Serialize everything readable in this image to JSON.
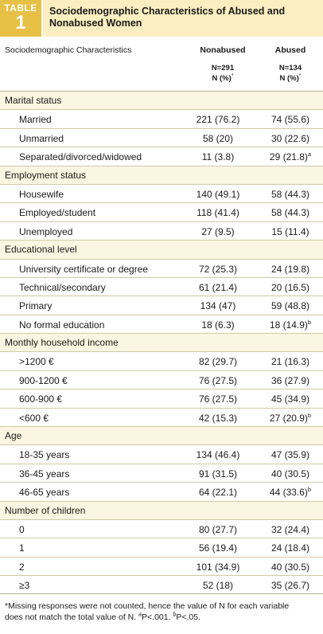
{
  "header": {
    "tag_word": "TABLE",
    "tag_number": "1",
    "title": "Sociodemographic Characteristics of Abused and Nonabused Women"
  },
  "columns": {
    "label": "Sociodemographic Characteristics",
    "nonabused": "Nonabused",
    "abused": "Abused",
    "nonabused_n": "N=291",
    "abused_n": "N=134",
    "n_pct": "N (%)",
    "n_pct_mark": "*"
  },
  "sections": [
    {
      "category": "Marital status",
      "rows": [
        {
          "label": "Married",
          "nonabused": "221 (76.2)",
          "abused": "74 (55.6)",
          "abused_sup": ""
        },
        {
          "label": "Unmarried",
          "nonabused": "58 (20)",
          "abused": "30 (22.6)",
          "abused_sup": ""
        },
        {
          "label": "Separated/divorced/widowed",
          "nonabused": "11 (3.8)",
          "abused": "29 (21.8)",
          "abused_sup": "a"
        }
      ]
    },
    {
      "category": "Employment status",
      "rows": [
        {
          "label": "Housewife",
          "nonabused": "140 (49.1)",
          "abused": "58 (44.3)",
          "abused_sup": ""
        },
        {
          "label": "Employed/student",
          "nonabused": "118 (41.4)",
          "abused": "58 (44.3)",
          "abused_sup": ""
        },
        {
          "label": "Unemployed",
          "nonabused": "27 (9.5)",
          "abused": "15 (11.4)",
          "abused_sup": ""
        }
      ]
    },
    {
      "category": "Educational level",
      "rows": [
        {
          "label": "University certificate or degree",
          "nonabused": "72 (25.3)",
          "abused": "24 (19.8)",
          "abused_sup": ""
        },
        {
          "label": "Technical/secondary",
          "nonabused": "61 (21.4)",
          "abused": "20 (16.5)",
          "abused_sup": ""
        },
        {
          "label": "Primary",
          "nonabused": "134 (47)",
          "abused": "59 (48.8)",
          "abused_sup": ""
        },
        {
          "label": "No formal education",
          "nonabused": "18 (6.3)",
          "abused": "18 (14.9)",
          "abused_sup": "b"
        }
      ]
    },
    {
      "category": "Monthly household income",
      "rows": [
        {
          "label": ">1200 €",
          "nonabused": "82 (29.7)",
          "abused": "21 (16.3)",
          "abused_sup": ""
        },
        {
          "label": "900-1200 €",
          "nonabused": "76 (27.5)",
          "abused": "36 (27.9)",
          "abused_sup": ""
        },
        {
          "label": "600-900 €",
          "nonabused": "76 (27.5)",
          "abused": "45 (34.9)",
          "abused_sup": ""
        },
        {
          "label": "<600 €",
          "nonabused": "42 (15.3)",
          "abused": "27 (20.9)",
          "abused_sup": "b"
        }
      ]
    },
    {
      "category": "Age",
      "rows": [
        {
          "label": "18-35 years",
          "nonabused": "134 (46.4)",
          "abused": "47 (35.9)",
          "abused_sup": ""
        },
        {
          "label": "36-45 years",
          "nonabused": "91 (31.5)",
          "abused": "40 (30.5)",
          "abused_sup": ""
        },
        {
          "label": "46-65 years",
          "nonabused": "64 (22.1)",
          "abused": "44 (33.6)",
          "abused_sup": "b"
        }
      ]
    },
    {
      "category": "Number of children",
      "rows": [
        {
          "label": "0",
          "nonabused": "80 (27.7)",
          "abused": "32 (24.4)",
          "abused_sup": ""
        },
        {
          "label": "1",
          "nonabused": "56 (19.4)",
          "abused": "24 (18.4)",
          "abused_sup": ""
        },
        {
          "label": "2",
          "nonabused": "101 (34.9)",
          "abused": "40 (30.5)",
          "abused_sup": ""
        },
        {
          "label": "≥3",
          "nonabused": "52 (18)",
          "abused": "35 (26.7)",
          "abused_sup": ""
        }
      ]
    }
  ],
  "footnote": {
    "line1": "*Missing responses were not counted, hence the value of N for each variable",
    "line2": "does not match the total value of N.",
    "mark_a": "a",
    "text_a": "P<.001.",
    "mark_b": "b",
    "text_b": "P<.05."
  }
}
